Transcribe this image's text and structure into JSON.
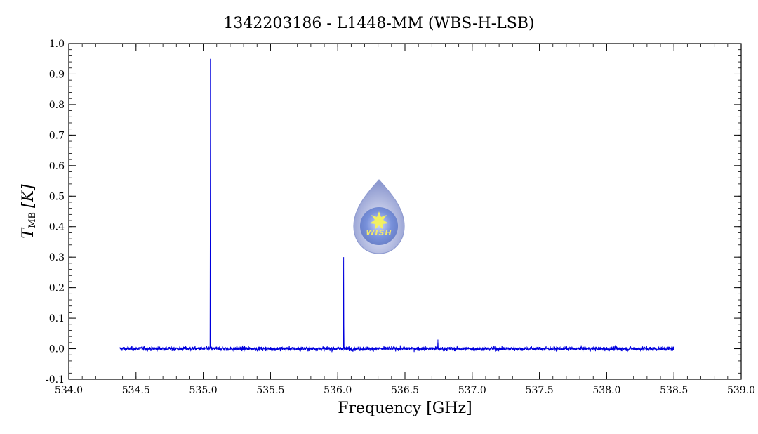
{
  "chart_data": {
    "type": "line",
    "title": "1342203186 - L1448-MM (WBS-H-LSB)",
    "xlabel": "Frequency [GHz]",
    "ylabel": "T",
    "ylabel_sub": "MB",
    "ylabel_unit": "[K]",
    "xlim": [
      534.0,
      539.0
    ],
    "ylim": [
      -0.1,
      1.0
    ],
    "x_ticks": [
      534.0,
      534.5,
      535.0,
      535.5,
      536.0,
      536.5,
      537.0,
      537.5,
      538.0,
      538.5,
      539.0
    ],
    "x_tick_labels": [
      "534.0",
      "534.5",
      "535.0",
      "535.5",
      "536.0",
      "536.5",
      "537.0",
      "537.5",
      "538.0",
      "538.5",
      "539.0"
    ],
    "y_ticks": [
      -0.1,
      0.0,
      0.1,
      0.2,
      0.3,
      0.4,
      0.5,
      0.6,
      0.7,
      0.8,
      0.9,
      1.0
    ],
    "y_tick_labels": [
      "-0.1",
      "0.0",
      "0.1",
      "0.2",
      "0.3",
      "0.4",
      "0.5",
      "0.6",
      "0.7",
      "0.8",
      "0.9",
      "1.0"
    ],
    "grid": false,
    "series": [
      {
        "color": "#0000dd",
        "x_range": [
          534.38,
          538.5
        ],
        "baseline": 0.0,
        "noise_rms": 0.006,
        "peaks": [
          {
            "x": 535.053,
            "y": 0.95
          },
          {
            "x": 536.044,
            "y": 0.3
          },
          {
            "x": 536.745,
            "y": 0.03
          }
        ]
      }
    ]
  },
  "logo": {
    "icon": "water-drop-star-icon",
    "text": "WISH",
    "colors": {
      "outer": "#9aa6d6",
      "inner": "#5f7fd0",
      "star": "#f6f25a"
    }
  }
}
